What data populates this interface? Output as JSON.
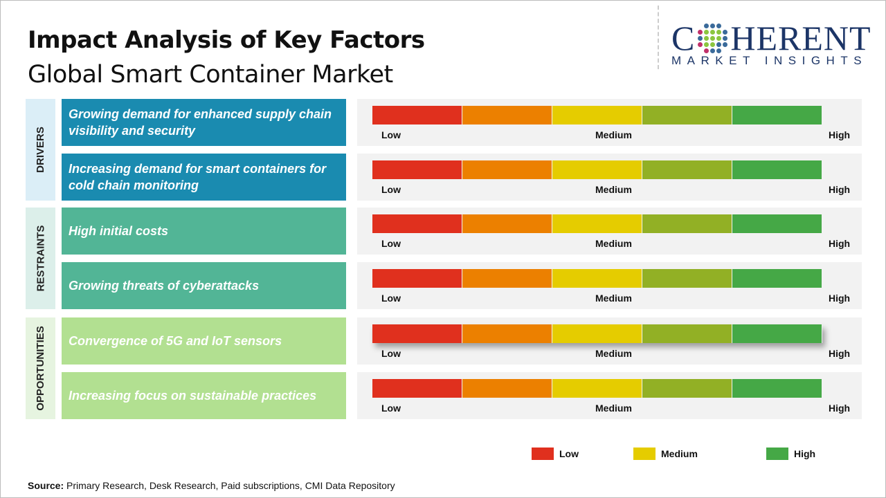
{
  "title": "Impact Analysis of Key Factors",
  "subtitle": "Global Smart Container Market",
  "logo": {
    "main": "COHERENT",
    "sub": "MARKET INSIGHTS"
  },
  "scale_labels": {
    "low": "Low",
    "medium": "Medium",
    "high": "High"
  },
  "scale_colors": [
    "#e0301e",
    "#ec8000",
    "#e5cc00",
    "#92b025",
    "#45a846"
  ],
  "categories": [
    {
      "label": "DRIVERS",
      "bg": "#dbeef7",
      "factor_color": "#1a8bb0",
      "factors": [
        "Growing demand for enhanced supply chain visibility and security",
        "Increasing demand for smart containers for cold chain monitoring"
      ]
    },
    {
      "label": "RESTRAINTS",
      "bg": "#dcefea",
      "factor_color": "#52b596",
      "factors": [
        "High initial costs",
        "Growing threats of cyberattacks"
      ]
    },
    {
      "label": "OPPORTUNITIES",
      "bg": "#e6f4e0",
      "factor_color": "#b2e091",
      "factors": [
        "Convergence of 5G and IoT sensors",
        "Increasing focus on sustainable practices"
      ]
    }
  ],
  "legend": [
    {
      "label": "Low",
      "color": "#e0301e"
    },
    {
      "label": "Medium",
      "color": "#e5cc00"
    },
    {
      "label": "High",
      "color": "#45a846"
    }
  ],
  "source": {
    "label": "Source:",
    "text": " Primary Research, Desk Research, Paid subscriptions, CMI Data Repository"
  }
}
